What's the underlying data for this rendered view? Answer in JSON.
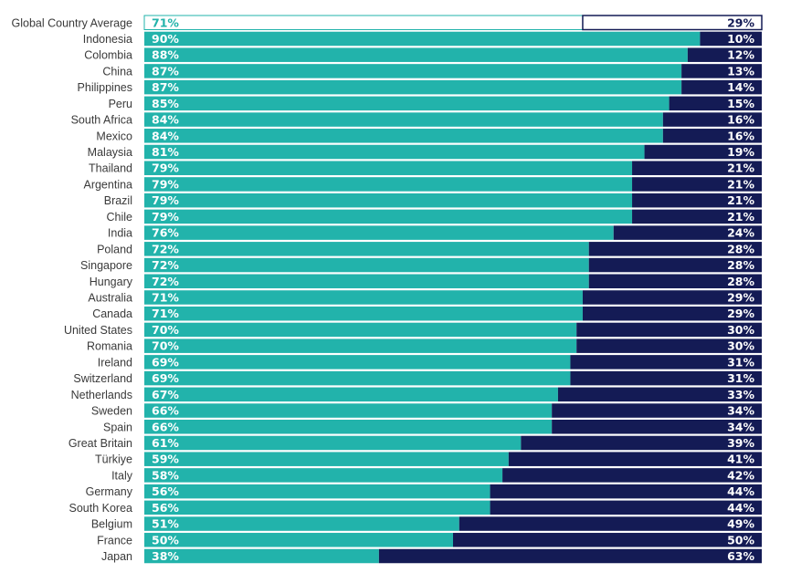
{
  "chart_data": {
    "type": "bar",
    "orientation": "horizontal",
    "stacked": true,
    "percent_scale": true,
    "xlim": [
      0,
      100
    ],
    "grid": false,
    "legend": "none",
    "colors": {
      "first_series": "#22b3ab",
      "second_series": "#141b55",
      "highlight_fill": "#ffffff",
      "highlight_first_border": "#22b3ab",
      "highlight_second_border": "#141b55",
      "highlight_first_text": "#22b3ab",
      "highlight_second_text": "#141b55",
      "value_text": "#ffffff",
      "category_text": "#3a3a3a"
    },
    "categories": [
      "Global Country Average",
      "Indonesia",
      "Colombia",
      "China",
      "Philippines",
      "Peru",
      "South Africa",
      "Mexico",
      "Malaysia",
      "Thailand",
      "Argentina",
      "Brazil",
      "Chile",
      "India",
      "Poland",
      "Singapore",
      "Hungary",
      "Australia",
      "Canada",
      "United States",
      "Romania",
      "Ireland",
      "Switzerland",
      "Netherlands",
      "Sweden",
      "Spain",
      "Great Britain",
      "Türkiye",
      "Italy",
      "Germany",
      "South Korea",
      "Belgium",
      "France",
      "Japan"
    ],
    "highlight_category": "Global Country Average",
    "series": [
      {
        "values": [
          71,
          90,
          88,
          87,
          87,
          85,
          84,
          84,
          81,
          79,
          79,
          79,
          79,
          76,
          72,
          72,
          72,
          71,
          71,
          70,
          70,
          69,
          69,
          67,
          66,
          66,
          61,
          59,
          58,
          56,
          56,
          51,
          50,
          38
        ]
      },
      {
        "values": [
          29,
          10,
          12,
          13,
          14,
          15,
          16,
          16,
          19,
          21,
          21,
          21,
          21,
          24,
          28,
          28,
          28,
          29,
          29,
          30,
          30,
          31,
          31,
          33,
          34,
          34,
          39,
          41,
          42,
          44,
          44,
          49,
          50,
          63
        ]
      }
    ]
  }
}
